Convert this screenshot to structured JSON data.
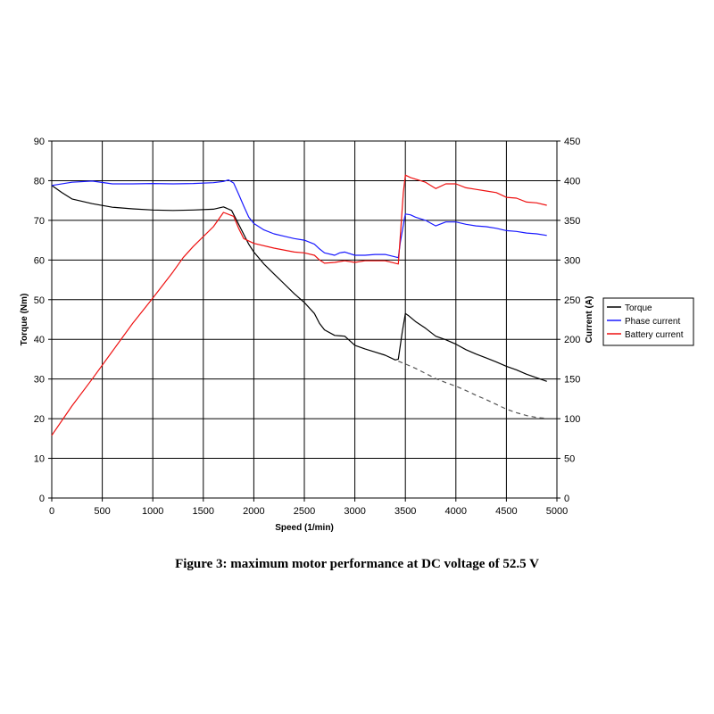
{
  "caption": "Figure 3: maximum motor performance at DC voltage of 52.5 V",
  "chart_data": {
    "type": "line",
    "xlabel": "Speed (1/min)",
    "ylabel_left": "Torque (Nm)",
    "ylabel_right": "Current (A)",
    "xlim": [
      0,
      5000
    ],
    "ylim_left": [
      0,
      90
    ],
    "ylim_right": [
      0,
      450
    ],
    "x_ticks": [
      0,
      500,
      1000,
      1500,
      2000,
      2500,
      3000,
      3500,
      4000,
      4500,
      5000
    ],
    "y_ticks_left": [
      0,
      10,
      20,
      30,
      40,
      50,
      60,
      70,
      80,
      90
    ],
    "y_ticks_right": [
      0,
      50,
      100,
      150,
      200,
      250,
      300,
      350,
      400,
      450
    ],
    "grid": true,
    "legend_position": "right",
    "series": [
      {
        "name": "Torque",
        "axis": "left",
        "color": "#000000",
        "points": [
          [
            0,
            78.8
          ],
          [
            100,
            77
          ],
          [
            200,
            75.4
          ],
          [
            400,
            74.2
          ],
          [
            600,
            73.3
          ],
          [
            800,
            72.9
          ],
          [
            1000,
            72.6
          ],
          [
            1200,
            72.5
          ],
          [
            1400,
            72.6
          ],
          [
            1600,
            72.8
          ],
          [
            1700,
            73.4
          ],
          [
            1780,
            72.5
          ],
          [
            1850,
            69
          ],
          [
            1950,
            64
          ],
          [
            2000,
            62
          ],
          [
            2100,
            59
          ],
          [
            2200,
            56.5
          ],
          [
            2300,
            54
          ],
          [
            2400,
            51.5
          ],
          [
            2500,
            49.3
          ],
          [
            2600,
            46.5
          ],
          [
            2650,
            44
          ],
          [
            2700,
            42.4
          ],
          [
            2800,
            41
          ],
          [
            2900,
            40.8
          ],
          [
            3000,
            38.5
          ],
          [
            3100,
            37.6
          ],
          [
            3200,
            36.8
          ],
          [
            3300,
            36
          ],
          [
            3400,
            34.8
          ],
          [
            3430,
            35
          ],
          [
            3470,
            42
          ],
          [
            3500,
            46.5
          ],
          [
            3530,
            46
          ],
          [
            3600,
            44.5
          ],
          [
            3700,
            42.8
          ],
          [
            3800,
            40.8
          ],
          [
            3900,
            39.9
          ],
          [
            4000,
            38.8
          ],
          [
            4100,
            37.4
          ],
          [
            4200,
            36.3
          ],
          [
            4300,
            35.3
          ],
          [
            4400,
            34.3
          ],
          [
            4500,
            33.2
          ],
          [
            4600,
            32.3
          ],
          [
            4700,
            31.2
          ],
          [
            4800,
            30.3
          ],
          [
            4900,
            29.4
          ]
        ]
      },
      {
        "name": "Phase current",
        "axis": "right",
        "color": "#1a1aff",
        "points": [
          [
            0,
            394
          ],
          [
            200,
            398
          ],
          [
            400,
            399.5
          ],
          [
            600,
            396
          ],
          [
            800,
            396
          ],
          [
            1000,
            396.5
          ],
          [
            1200,
            396
          ],
          [
            1400,
            396.5
          ],
          [
            1600,
            397.5
          ],
          [
            1700,
            399
          ],
          [
            1750,
            401
          ],
          [
            1800,
            397
          ],
          [
            1850,
            383
          ],
          [
            1900,
            368
          ],
          [
            1950,
            354
          ],
          [
            2000,
            346
          ],
          [
            2100,
            338
          ],
          [
            2200,
            333
          ],
          [
            2300,
            330
          ],
          [
            2400,
            327
          ],
          [
            2500,
            325
          ],
          [
            2600,
            320
          ],
          [
            2650,
            314
          ],
          [
            2700,
            309
          ],
          [
            2800,
            306
          ],
          [
            2850,
            309
          ],
          [
            2900,
            310
          ],
          [
            3000,
            306
          ],
          [
            3100,
            306
          ],
          [
            3200,
            307
          ],
          [
            3300,
            307
          ],
          [
            3430,
            303
          ],
          [
            3450,
            322
          ],
          [
            3490,
            352
          ],
          [
            3500,
            358
          ],
          [
            3550,
            357
          ],
          [
            3600,
            354
          ],
          [
            3700,
            350
          ],
          [
            3800,
            343
          ],
          [
            3900,
            348
          ],
          [
            4000,
            348
          ],
          [
            4100,
            345
          ],
          [
            4200,
            343
          ],
          [
            4300,
            342
          ],
          [
            4400,
            340
          ],
          [
            4500,
            337
          ],
          [
            4600,
            336
          ],
          [
            4700,
            334
          ],
          [
            4800,
            333
          ],
          [
            4900,
            331
          ]
        ]
      },
      {
        "name": "Battery current",
        "axis": "right",
        "color": "#ee1111",
        "points": [
          [
            0,
            79
          ],
          [
            200,
            116
          ],
          [
            400,
            150
          ],
          [
            600,
            185
          ],
          [
            800,
            220
          ],
          [
            1000,
            252
          ],
          [
            1200,
            285
          ],
          [
            1300,
            303
          ],
          [
            1400,
            317
          ],
          [
            1600,
            342
          ],
          [
            1700,
            360
          ],
          [
            1800,
            355
          ],
          [
            1850,
            340
          ],
          [
            1900,
            327
          ],
          [
            2000,
            321
          ],
          [
            2200,
            315
          ],
          [
            2400,
            310
          ],
          [
            2500,
            309
          ],
          [
            2600,
            306
          ],
          [
            2650,
            300
          ],
          [
            2700,
            296
          ],
          [
            2800,
            297
          ],
          [
            2900,
            299
          ],
          [
            3000,
            297
          ],
          [
            3100,
            299
          ],
          [
            3200,
            299
          ],
          [
            3300,
            299
          ],
          [
            3430,
            295
          ],
          [
            3450,
            330
          ],
          [
            3480,
            385
          ],
          [
            3500,
            407
          ],
          [
            3550,
            404
          ],
          [
            3700,
            398
          ],
          [
            3800,
            390
          ],
          [
            3900,
            396
          ],
          [
            4000,
            396
          ],
          [
            4100,
            391
          ],
          [
            4200,
            389
          ],
          [
            4300,
            387
          ],
          [
            4400,
            385
          ],
          [
            4500,
            379
          ],
          [
            4600,
            378
          ],
          [
            4700,
            373
          ],
          [
            4800,
            372
          ],
          [
            4900,
            369
          ]
        ]
      },
      {
        "name": "",
        "axis": "left",
        "color": "#555555",
        "dashed": true,
        "points": [
          [
            3430,
            34.5
          ],
          [
            3500,
            33.8
          ],
          [
            3600,
            32.7
          ],
          [
            3700,
            31.4
          ],
          [
            3800,
            30.1
          ],
          [
            3900,
            29.1
          ],
          [
            4000,
            28.2
          ],
          [
            4100,
            27.1
          ],
          [
            4200,
            25.9
          ],
          [
            4300,
            24.8
          ],
          [
            4400,
            23.6
          ],
          [
            4500,
            22.4
          ],
          [
            4600,
            21.5
          ],
          [
            4700,
            20.8
          ],
          [
            4800,
            20.3
          ],
          [
            4900,
            20.1
          ]
        ]
      }
    ]
  }
}
